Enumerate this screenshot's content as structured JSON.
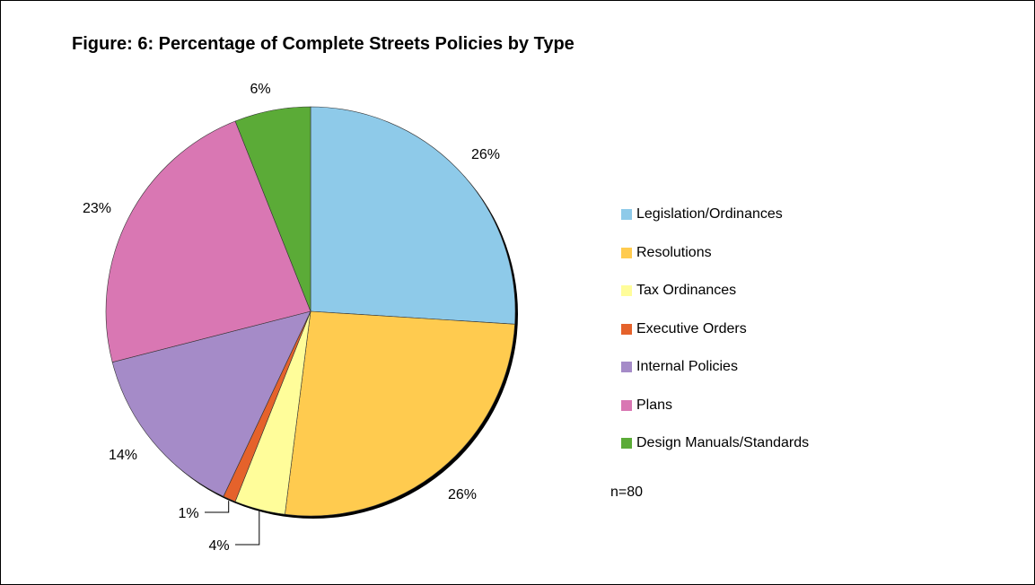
{
  "chart_data": {
    "type": "pie",
    "title": "Figure: 6:  Percentage of Complete Streets Policies by Type",
    "note": "n=80",
    "legend_position": "right",
    "slices": [
      {
        "name": "Legislation/Ordinances",
        "value": 26,
        "label": "26%",
        "color": "#8ECAE9"
      },
      {
        "name": "Resolutions",
        "value": 26,
        "label": "26%",
        "color": "#FFCB4F"
      },
      {
        "name": "Tax Ordinances",
        "value": 4,
        "label": "4%",
        "color": "#FFFD9A"
      },
      {
        "name": "Executive Orders",
        "value": 1,
        "label": "1%",
        "color": "#E5622B"
      },
      {
        "name": "Internal Policies",
        "value": 14,
        "label": "14%",
        "color": "#A58BC8"
      },
      {
        "name": "Plans",
        "value": 23,
        "label": "23%",
        "color": "#D977B3"
      },
      {
        "name": "Design Manuals/Standards",
        "value": 6,
        "label": "6%",
        "color": "#5BAB37"
      }
    ]
  }
}
